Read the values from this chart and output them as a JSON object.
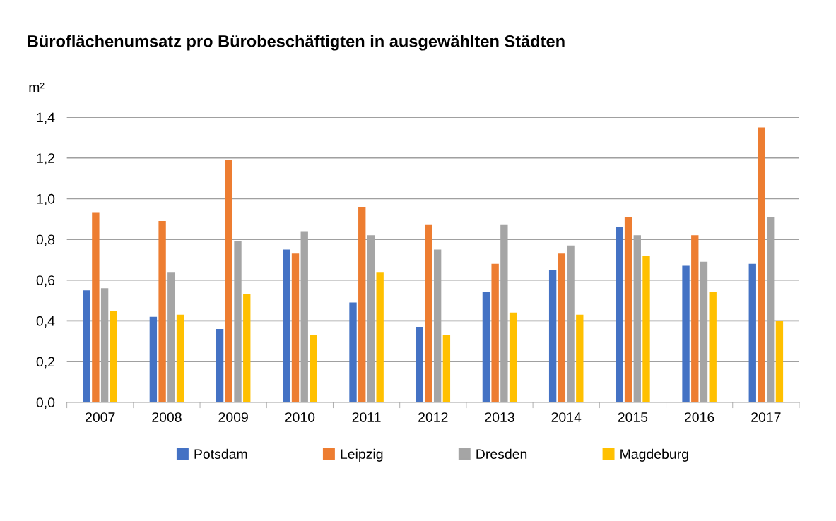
{
  "chart_data": {
    "type": "bar",
    "title": "Büroflächenumsatz pro Bürobeschäftigten in ausgewählten Städten",
    "ylabel": "m²",
    "categories": [
      "2007",
      "2008",
      "2009",
      "2010",
      "2011",
      "2012",
      "2013",
      "2014",
      "2015",
      "2016",
      "2017"
    ],
    "series": [
      {
        "name": "Potsdam",
        "color": "#4472c4",
        "values": [
          0.55,
          0.42,
          0.36,
          0.75,
          0.49,
          0.37,
          0.54,
          0.65,
          0.86,
          0.67,
          0.68
        ]
      },
      {
        "name": "Leipzig",
        "color": "#ed7d31",
        "values": [
          0.93,
          0.89,
          1.19,
          0.73,
          0.96,
          0.87,
          0.68,
          0.73,
          0.91,
          0.82,
          1.35
        ]
      },
      {
        "name": "Dresden",
        "color": "#a5a5a5",
        "values": [
          0.56,
          0.64,
          0.79,
          0.84,
          0.82,
          0.75,
          0.87,
          0.77,
          0.82,
          0.69,
          0.91
        ]
      },
      {
        "name": "Magdeburg",
        "color": "#ffc000",
        "values": [
          0.45,
          0.43,
          0.53,
          0.33,
          0.64,
          0.33,
          0.44,
          0.43,
          0.72,
          0.54,
          0.4
        ]
      }
    ],
    "ylim": [
      0,
      1.4
    ],
    "yticks": [
      {
        "value": 0,
        "label": "0,0"
      },
      {
        "value": 0.2,
        "label": "0,2"
      },
      {
        "value": 0.4,
        "label": "0,4"
      },
      {
        "value": 0.6,
        "label": "0,6"
      },
      {
        "value": 0.8,
        "label": "0,8"
      },
      {
        "value": 1.0,
        "label": "1,0"
      },
      {
        "value": 1.2,
        "label": "1,2"
      },
      {
        "value": 1.4,
        "label": "1,4"
      }
    ],
    "grid": "y",
    "legend": "bottom"
  }
}
